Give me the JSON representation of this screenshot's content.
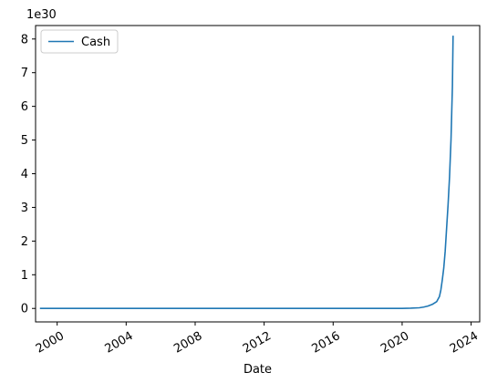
{
  "chart_data": {
    "type": "line",
    "xlabel": "Date",
    "ylabel": "",
    "y_offset_label": "1e30",
    "y_scale": 1e+30,
    "xlim": [
      "1998-10-01",
      "2024-07-01"
    ],
    "ylim": [
      -0.4,
      8.4
    ],
    "x_ticks": [
      "2000",
      "2004",
      "2008",
      "2012",
      "2016",
      "2020",
      "2024"
    ],
    "y_ticks": [
      "0",
      "1",
      "2",
      "3",
      "4",
      "5",
      "6",
      "7",
      "8"
    ],
    "grid": false,
    "legend": {
      "position": "top-left",
      "entries": [
        "Cash"
      ]
    },
    "series": [
      {
        "name": "Cash",
        "color": "#1f77b4",
        "x": [
          "1999-01-01",
          "2005-01-01",
          "2010-01-01",
          "2015-01-01",
          "2019-01-01",
          "2020-01-01",
          "2020-07-01",
          "2021-01-01",
          "2021-04-01",
          "2021-07-01",
          "2021-10-01",
          "2022-01-01",
          "2022-03-01",
          "2022-04-01",
          "2022-05-01",
          "2022-06-01",
          "2022-07-01",
          "2022-08-01",
          "2022-09-01",
          "2022-10-01",
          "2022-11-01",
          "2022-12-01",
          "2022-12-15"
        ],
        "y": [
          0,
          0,
          0,
          0,
          0,
          0.002,
          0.008,
          0.02,
          0.04,
          0.07,
          0.12,
          0.2,
          0.35,
          0.55,
          0.85,
          1.2,
          1.7,
          2.4,
          3.1,
          3.9,
          5.0,
          6.6,
          8.1
        ]
      }
    ]
  }
}
